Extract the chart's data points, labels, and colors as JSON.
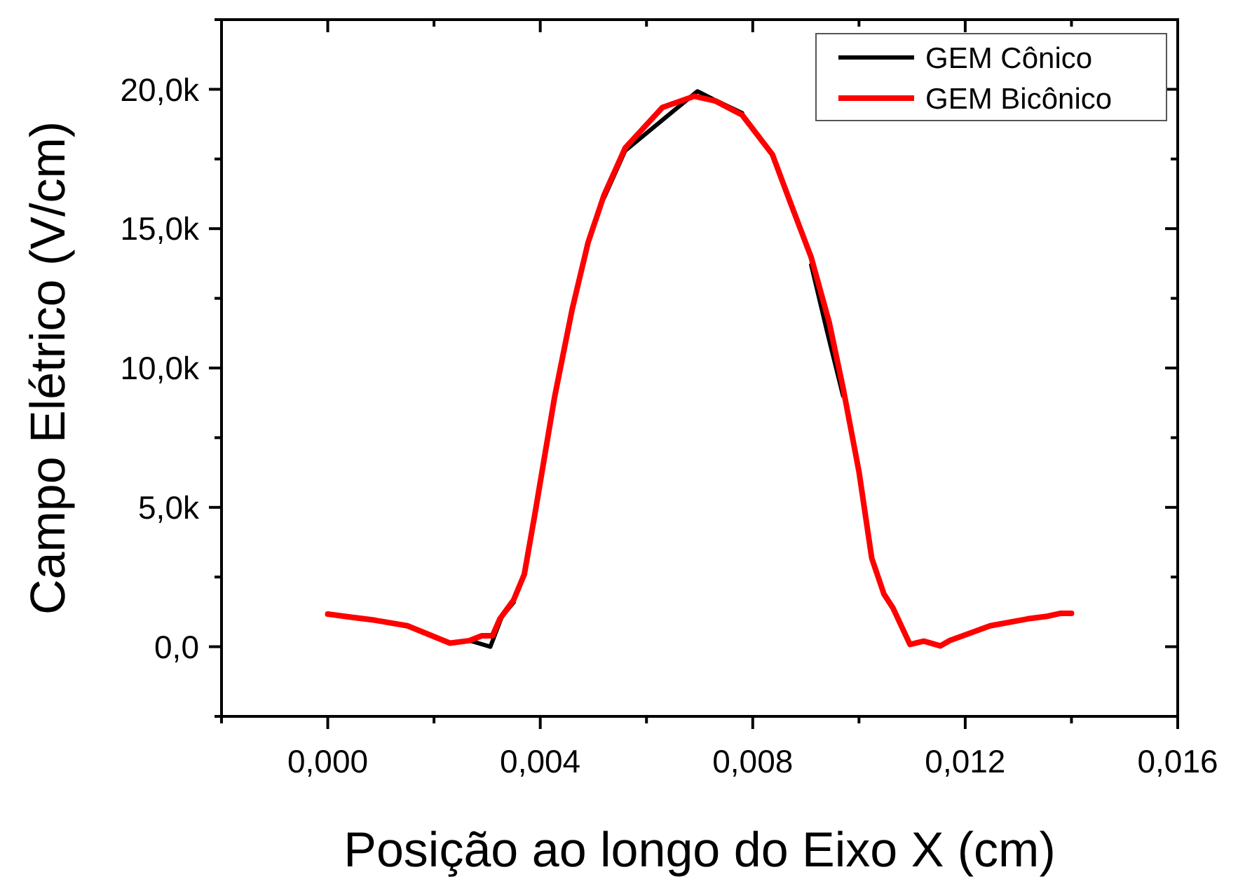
{
  "chart_data": {
    "type": "line",
    "xlabel": "Posição ao longo do Eixo X (cm)",
    "ylabel": "Campo Elétrico (V/cm)",
    "xlim": [
      -0.002,
      0.016
    ],
    "ylim": [
      -2500,
      22500
    ],
    "xticks": [
      {
        "value": -0.002,
        "label": null
      },
      {
        "value": 0,
        "label": "0,000"
      },
      {
        "value": 0.002,
        "label": null
      },
      {
        "value": 0.004,
        "label": "0,004"
      },
      {
        "value": 0.006,
        "label": null
      },
      {
        "value": 0.008,
        "label": "0,008"
      },
      {
        "value": 0.01,
        "label": null
      },
      {
        "value": 0.012,
        "label": "0,012"
      },
      {
        "value": 0.014,
        "label": null
      },
      {
        "value": 0.016,
        "label": "0,016"
      }
    ],
    "yticks": [
      {
        "value": -2500,
        "label": null
      },
      {
        "value": 0,
        "label": "0,0"
      },
      {
        "value": 2500,
        "label": null
      },
      {
        "value": 5000,
        "label": "5,0k"
      },
      {
        "value": 7500,
        "label": null
      },
      {
        "value": 10000,
        "label": "10,0k"
      },
      {
        "value": 12500,
        "label": null
      },
      {
        "value": 15000,
        "label": "15,0k"
      },
      {
        "value": 17500,
        "label": null
      },
      {
        "value": 20000,
        "label": "20,0k"
      },
      {
        "value": 22500,
        "label": null
      }
    ],
    "legend": "top right",
    "grid": false,
    "line_style": "solid",
    "marker": "none",
    "series": [
      {
        "name": "GEM Cônico",
        "color": "#000000",
        "x": [
          0.00267,
          0.00306,
          0.00328,
          0.0035,
          null,
          0.0052,
          0.0056,
          0.00696,
          0.0073,
          0.0078,
          null,
          0.0091,
          0.0094,
          0.0097
        ],
        "values": [
          220,
          0,
          1090,
          1590,
          null,
          16100,
          17800,
          19930,
          19600,
          19150,
          null,
          13700,
          11300,
          9000
        ]
      },
      {
        "name": "GEM Bicônico",
        "color": "#ff0000",
        "x": [
          0,
          0.00044,
          0.00089,
          0.0015,
          0.0023,
          0.00267,
          0.0029,
          0.0031,
          0.00324,
          0.0035,
          0.0037,
          0.0039,
          0.00427,
          0.0046,
          0.0049,
          0.0052,
          0.0056,
          0.0063,
          0.0069,
          0.0073,
          0.0078,
          0.00837,
          0.0087,
          0.0091,
          0.00944,
          0.0097,
          0.01,
          0.01024,
          0.01047,
          0.01064,
          0.01096,
          0.01122,
          0.01153,
          0.01171,
          0.01247,
          0.01318,
          0.01354,
          0.0138,
          0.014
        ],
        "values": [
          1170,
          1060,
          950,
          750,
          130,
          220,
          390,
          390,
          1000,
          1680,
          2600,
          4770,
          8960,
          12100,
          14500,
          16200,
          17900,
          19350,
          19750,
          19580,
          19080,
          17660,
          15980,
          13970,
          11630,
          9290,
          6280,
          3180,
          1890,
          1390,
          80,
          200,
          30,
          220,
          750,
          1000,
          1090,
          1200,
          1200
        ]
      }
    ]
  }
}
